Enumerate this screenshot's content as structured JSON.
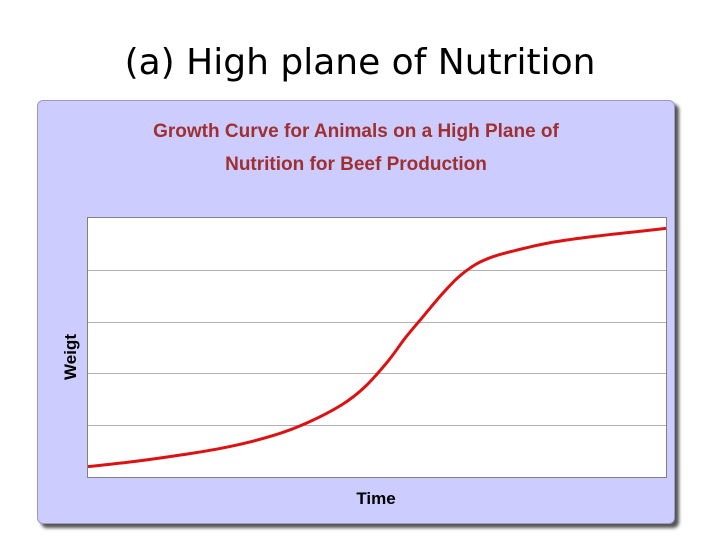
{
  "slide": {
    "title": "(a) High plane of Nutrition"
  },
  "chart_data": {
    "type": "line",
    "title_line1": "Growth Curve for Animals on a High Plane of",
    "title_line2": "Nutrition for Beef Production",
    "xlabel": "Time",
    "ylabel": "Weigt",
    "xlim": [
      0,
      100
    ],
    "ylim": [
      0,
      100
    ],
    "grid": true,
    "series": [
      {
        "color": "#dd1111",
        "x": [
          0,
          8,
          16,
          24,
          32,
          38,
          44,
          48,
          52,
          55,
          58,
          61,
          64,
          67,
          70,
          74,
          80,
          88,
          96,
          100
        ],
        "y": [
          4,
          6,
          8.5,
          11.5,
          16,
          21,
          28,
          35,
          45,
          54,
          62,
          70,
          77,
          82,
          85,
          87.5,
          90.5,
          93,
          95,
          96
        ]
      }
    ],
    "gridline_count": 5
  }
}
